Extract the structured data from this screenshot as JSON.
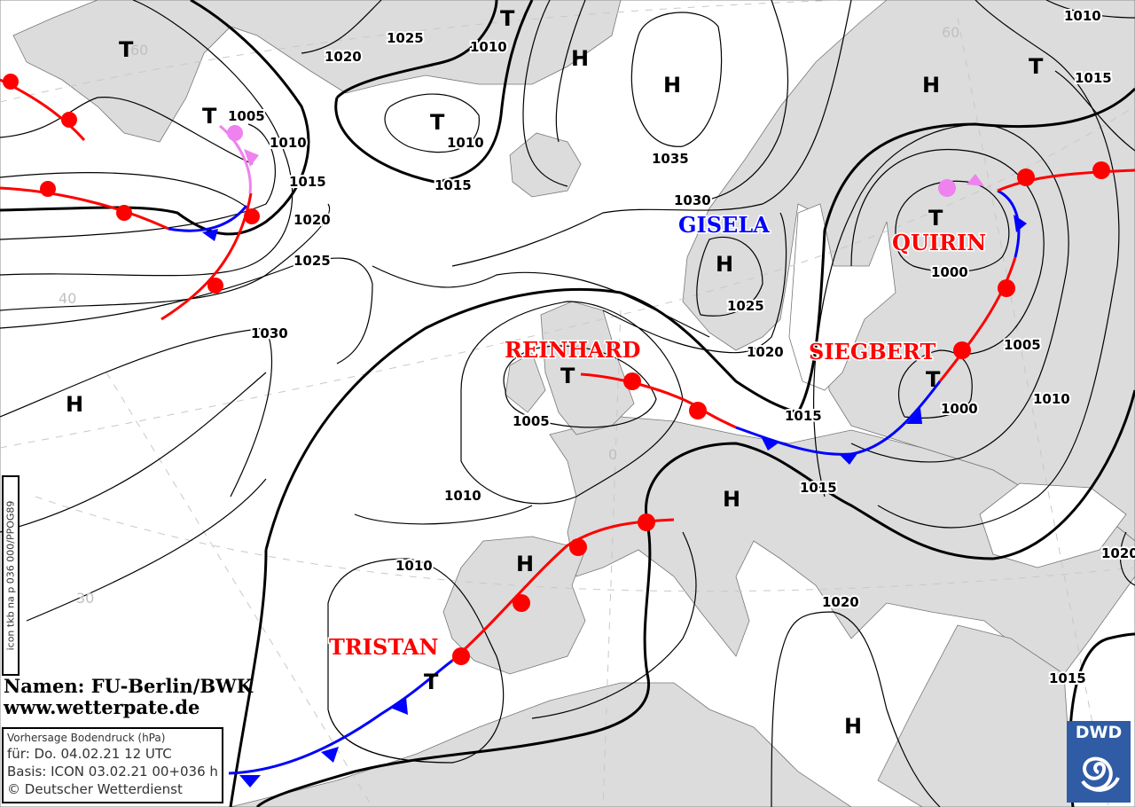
{
  "map": {
    "credits": {
      "names": "Namen: FU-Berlin/BWK",
      "website": "www.wetterpate.de"
    },
    "infobox": {
      "title": "Vorhersage Bodendruck (hPa)",
      "valid": "für:  Do. 04.02.21  12 UTC",
      "basis": "Basis: ICON  03.02.21 00+036 h",
      "copyright": "© Deutscher Wetterdienst"
    },
    "run_id": "icon tkb na p 036 000/PPOG89",
    "logo": {
      "text": "DWD",
      "color": "#2f5ca5"
    },
    "colors": {
      "land": "#dcdcdc",
      "warm_front": "#ff0000",
      "cold_front": "#0000ff",
      "occlusion": "#ee82ee"
    },
    "system_names": [
      {
        "name": "GISELA",
        "color": "#0000ff"
      },
      {
        "name": "QUIRIN",
        "color": "#ff0000"
      },
      {
        "name": "SIEGBERT",
        "color": "#ff0000"
      },
      {
        "name": "REINHARD",
        "color": "#ff0000"
      },
      {
        "name": "TRISTAN",
        "color": "#ff0000"
      }
    ],
    "pressure_centers": [
      "T",
      "T",
      "T",
      "T",
      "H",
      "H",
      "T",
      "H",
      "H",
      "T",
      "T",
      "T",
      "H",
      "H",
      "H",
      "T",
      "H"
    ],
    "isobar_labels": [
      "1020",
      "1025",
      "1010",
      "1010",
      "1015",
      "1035",
      "1030",
      "1005",
      "1010",
      "1015",
      "1020",
      "1025",
      "1030",
      "1025",
      "1020",
      "1000",
      "1005",
      "1000",
      "1010",
      "1005",
      "1015",
      "1015",
      "1010",
      "1010",
      "1020",
      "1015",
      "1020",
      "1015",
      "1010"
    ],
    "grid_labels": [
      "60",
      "40",
      "30",
      "0",
      "60"
    ]
  }
}
